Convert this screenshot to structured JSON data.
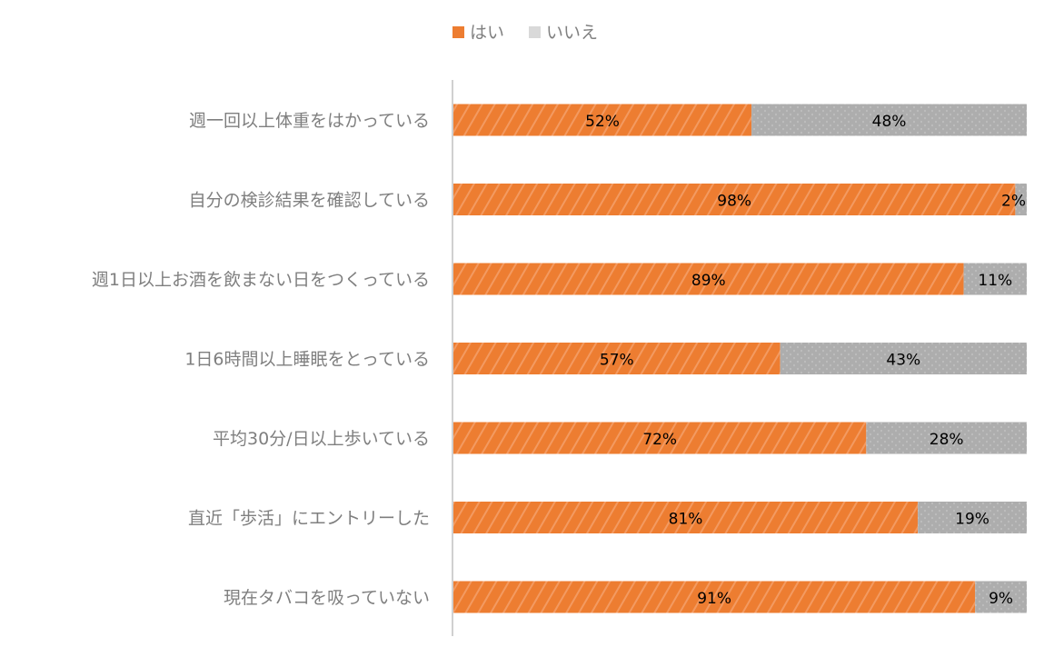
{
  "chart_data": {
    "type": "bar",
    "orientation": "horizontal",
    "stacked": "percent",
    "categories": [
      "週一回以上体重をはかっている",
      "自分の検診結果を確認している",
      "週1日以上お酒を飲まない日をつくっている",
      "1日6時間以上睡眠をとっている",
      "平均30分/日以上歩いている",
      "直近「歩活」にエントリーした",
      "現在タバコを吸っていない"
    ],
    "series": [
      {
        "name": "はい",
        "values": [
          52,
          98,
          89,
          57,
          72,
          81,
          91
        ],
        "color": "#ED7D31",
        "pattern": "diagonal-stripes"
      },
      {
        "name": "いいえ",
        "values": [
          48,
          2,
          11,
          43,
          28,
          19,
          9
        ],
        "color": "#ADADAD",
        "pattern": "dots"
      }
    ],
    "value_format": "percent",
    "xlim": [
      0,
      100
    ],
    "legend": "top-center",
    "grid": false
  }
}
